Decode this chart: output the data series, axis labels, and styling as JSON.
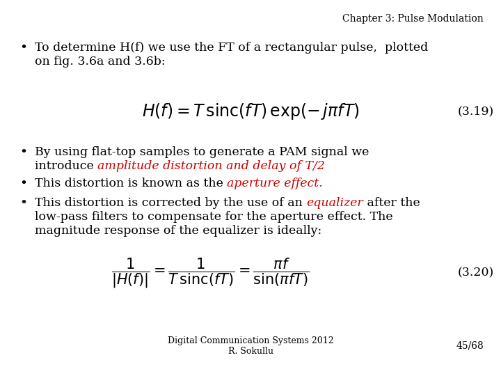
{
  "background_color": "#ffffff",
  "header_text": "Chapter 3: Pulse Modulation",
  "header_fontsize": 10,
  "header_color": "#000000",
  "bullet1_line1": "To determine H(f) we use the FT of a rectangular pulse,  plotted",
  "bullet1_line2": "on fig. 3.6a and 3.6b:",
  "eq1_label": "(3.19)",
  "bullet2_line1": "By using flat-top samples to generate a PAM signal we",
  "bullet2_line2_normal": "introduce ",
  "bullet2_line2_red": "amplitude distortion and delay of T/2",
  "bullet3_normal": "This distortion is known as the ",
  "bullet3_red": "aperture effect.",
  "bullet4_line1_normal1": "This distortion is corrected by the use of an ",
  "bullet4_line1_red": "equalizer",
  "bullet4_line1_normal2": " after the",
  "bullet4_line2": "low-pass filters to compensate for the aperture effect. The",
  "bullet4_line3": "magnitude response of the equalizer is ideally:",
  "eq2_label": "(3.20)",
  "footer_line1": "Digital Communication Systems 2012",
  "footer_line2": "R. Sokullu",
  "footer_page": "45/68",
  "text_fontsize": 12.5,
  "eq_fontsize": 14,
  "footer_fontsize": 9,
  "page_fontsize": 10,
  "red_color": "#cc0000",
  "black_color": "#000000"
}
